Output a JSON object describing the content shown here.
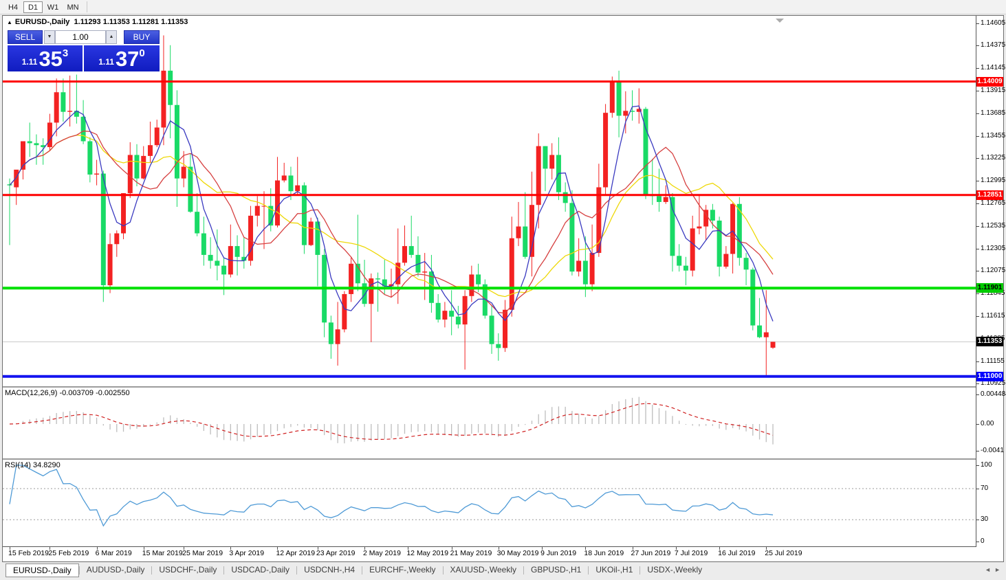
{
  "toolbar": {
    "timeframe_buttons": [
      {
        "label": "H4",
        "active": false
      },
      {
        "label": "D1",
        "active": true
      },
      {
        "label": "W1",
        "active": false
      },
      {
        "label": "MN",
        "active": false
      }
    ]
  },
  "chart_header": {
    "collapse_icon": "▲",
    "symbol": "EURUSD-,Daily",
    "ohlc": "1.11293 1.11353 1.11281 1.11353"
  },
  "trade_panel": {
    "sell_label": "SELL",
    "buy_label": "BUY",
    "volume": "1.00",
    "icons": {
      "spinner_down": "▼",
      "spinner_up": "▲"
    },
    "bid": {
      "prefix": "1.11",
      "big": "35",
      "sup": "3"
    },
    "ask": {
      "prefix": "1.11",
      "big": "37",
      "sup": "0"
    }
  },
  "price_axis": {
    "ticks": [
      "1.14605",
      "1.14375",
      "1.14145",
      "1.13915",
      "1.13685",
      "1.13455",
      "1.13225",
      "1.12995",
      "1.12765",
      "1.12535",
      "1.12305",
      "1.12075",
      "1.11845",
      "1.11615",
      "1.11385",
      "1.11155",
      "1.10925"
    ],
    "badges": [
      {
        "text": "1.14009",
        "bg": "#fe0000",
        "fg": "#ffffff"
      },
      {
        "text": "1.12851",
        "bg": "#fe0000",
        "fg": "#ffffff"
      },
      {
        "text": "1.11901",
        "bg": "#00cc00",
        "fg": "#000000"
      },
      {
        "text": "1.11353",
        "bg": "#000000",
        "fg": "#ffffff"
      },
      {
        "text": "1.11000",
        "bg": "#0000fe",
        "fg": "#ffffff"
      }
    ]
  },
  "macd_panel": {
    "label": "MACD(12,26,9) -0.003709 -0.002550",
    "axis_labels": [
      "0.004484",
      "0.00",
      "-0.0041"
    ],
    "params": {
      "fast": 12,
      "slow": 26,
      "signal": 9
    },
    "histogram_color": "#bdbdbd",
    "signal_color": "#d02020"
  },
  "rsi_panel": {
    "label": "RSI(14) 34.8290",
    "axis_labels": [
      "100",
      "70",
      "30",
      "0"
    ],
    "period": 14,
    "levels": [
      70,
      30
    ],
    "line_color": "#4e9ad6"
  },
  "date_axis": {
    "labels": [
      {
        "label": "15 Feb 2019",
        "i": 0
      },
      {
        "label": "25 Feb 2019",
        "i": 6
      },
      {
        "label": "6 Mar 2019",
        "i": 13
      },
      {
        "label": "15 Mar 2019",
        "i": 20
      },
      {
        "label": "25 Mar 2019",
        "i": 26
      },
      {
        "label": "3 Apr 2019",
        "i": 33
      },
      {
        "label": "12 Apr 2019",
        "i": 40
      },
      {
        "label": "23 Apr 2019",
        "i": 46
      },
      {
        "label": "2 May 2019",
        "i": 53
      },
      {
        "label": "12 May 2019",
        "i": 59.5
      },
      {
        "label": "21 May 2019",
        "i": 66
      },
      {
        "label": "30 May 2019",
        "i": 73
      },
      {
        "label": "9 Jun 2019",
        "i": 79.5
      },
      {
        "label": "18 Jun 2019",
        "i": 86
      },
      {
        "label": "27 Jun 2019",
        "i": 93
      },
      {
        "label": "7 Jul 2019",
        "i": 99.5
      },
      {
        "label": "16 Jul 2019",
        "i": 106
      },
      {
        "label": "25 Jul 2019",
        "i": 113
      }
    ]
  },
  "tabs": {
    "scroll_left_icon": "◄",
    "scroll_right_icon": "►",
    "items": [
      {
        "label": "EURUSD-,Daily",
        "active": true
      },
      {
        "label": "AUDUSD-,Daily",
        "active": false
      },
      {
        "label": "USDCHF-,Daily",
        "active": false
      },
      {
        "label": "USDCAD-,Daily",
        "active": false
      },
      {
        "label": "USDCNH-,H4",
        "active": false
      },
      {
        "label": "EURCHF-,Weekly",
        "active": false
      },
      {
        "label": "XAUUSD-,Weekly",
        "active": false
      },
      {
        "label": "GBPUSD-,H1",
        "active": false
      },
      {
        "label": "UKOil-,H1",
        "active": false
      },
      {
        "label": "USDX-,Weekly",
        "active": false
      }
    ]
  },
  "chart_data": {
    "type": "candlestick",
    "symbol": "EURUSD-",
    "timeframe": "Daily",
    "bull_color": "#f32222",
    "bear_color": "#19da66",
    "price_range": [
      1.109,
      1.1468
    ],
    "h_levels": [
      {
        "price": 1.14009,
        "color": "#fe0000",
        "width": 3
      },
      {
        "price": 1.12851,
        "color": "#fe0000",
        "width": 3
      },
      {
        "price": 1.11901,
        "color": "#00e002",
        "width": 4
      },
      {
        "price": 1.11,
        "color": "#1414f0",
        "width": 4
      },
      {
        "price": 1.11353,
        "color": "#c8c8c8",
        "width": 1,
        "role": "current-price"
      }
    ],
    "ma_lines": [
      {
        "color": "#eed808",
        "period": 18,
        "type": "sma"
      },
      {
        "color": "#d64040",
        "period": 11,
        "type": "sma"
      },
      {
        "color": "#3a3ac0",
        "period": 5,
        "type": "sma"
      }
    ],
    "candles": [
      [
        1.1296,
        1.1302,
        1.1234,
        1.1295
      ],
      [
        1.1293,
        1.131,
        1.1275,
        1.1311
      ],
      [
        1.1311,
        1.134,
        1.1301,
        1.134
      ],
      [
        1.134,
        1.1359,
        1.1324,
        1.1338
      ],
      [
        1.1338,
        1.1347,
        1.1316,
        1.1336
      ],
      [
        1.1336,
        1.1343,
        1.1316,
        1.1334
      ],
      [
        1.1334,
        1.1368,
        1.1331,
        1.1359
      ],
      [
        1.1359,
        1.1404,
        1.1345,
        1.139
      ],
      [
        1.139,
        1.1404,
        1.136,
        1.137
      ],
      [
        1.137,
        1.1407,
        1.1355,
        1.1371
      ],
      [
        1.1371,
        1.1408,
        1.1358,
        1.1365
      ],
      [
        1.1365,
        1.1382,
        1.1337,
        1.134
      ],
      [
        1.134,
        1.1344,
        1.1298,
        1.1306
      ],
      [
        1.1306,
        1.1321,
        1.1295,
        1.1307
      ],
      [
        1.1307,
        1.131,
        1.1176,
        1.1193
      ],
      [
        1.1193,
        1.1246,
        1.1185,
        1.1235
      ],
      [
        1.1235,
        1.1249,
        1.1222,
        1.1246
      ],
      [
        1.1246,
        1.1287,
        1.124,
        1.1287
      ],
      [
        1.1287,
        1.1339,
        1.1282,
        1.1326
      ],
      [
        1.1326,
        1.1337,
        1.1294,
        1.1302
      ],
      [
        1.1302,
        1.1335,
        1.1301,
        1.1325
      ],
      [
        1.1325,
        1.136,
        1.1318,
        1.1336
      ],
      [
        1.1336,
        1.1362,
        1.1334,
        1.1354
      ],
      [
        1.1354,
        1.1448,
        1.1336,
        1.1412
      ],
      [
        1.1412,
        1.1438,
        1.1343,
        1.1377
      ],
      [
        1.1377,
        1.1392,
        1.1273,
        1.1302
      ],
      [
        1.1302,
        1.133,
        1.1293,
        1.1314
      ],
      [
        1.1314,
        1.1327,
        1.1267,
        1.1268
      ],
      [
        1.1268,
        1.1287,
        1.1243,
        1.1246
      ],
      [
        1.1246,
        1.1263,
        1.1213,
        1.1224
      ],
      [
        1.1224,
        1.1242,
        1.121,
        1.1218
      ],
      [
        1.1218,
        1.125,
        1.1198,
        1.1213
      ],
      [
        1.1213,
        1.1221,
        1.1183,
        1.1204
      ],
      [
        1.1204,
        1.1255,
        1.1201,
        1.1233
      ],
      [
        1.1233,
        1.1244,
        1.1203,
        1.1222
      ],
      [
        1.1222,
        1.1242,
        1.121,
        1.1218
      ],
      [
        1.1218,
        1.1274,
        1.1213,
        1.1264
      ],
      [
        1.1264,
        1.1284,
        1.1253,
        1.1274
      ],
      [
        1.1274,
        1.1289,
        1.123,
        1.1274
      ],
      [
        1.1274,
        1.1292,
        1.1248,
        1.1254
      ],
      [
        1.1254,
        1.1324,
        1.1252,
        1.13
      ],
      [
        1.13,
        1.1318,
        1.1298,
        1.1305
      ],
      [
        1.1305,
        1.1314,
        1.128,
        1.1289
      ],
      [
        1.1289,
        1.1324,
        1.1286,
        1.1295
      ],
      [
        1.1295,
        1.1298,
        1.1225,
        1.1234
      ],
      [
        1.1234,
        1.1262,
        1.1233,
        1.1258
      ],
      [
        1.1258,
        1.1262,
        1.1192,
        1.1224
      ],
      [
        1.1224,
        1.123,
        1.114,
        1.1155
      ],
      [
        1.1155,
        1.1162,
        1.1118,
        1.1133
      ],
      [
        1.1133,
        1.1176,
        1.1111,
        1.1148
      ],
      [
        1.1148,
        1.1187,
        1.1145,
        1.1184
      ],
      [
        1.1184,
        1.1222,
        1.1176,
        1.1215
      ],
      [
        1.1215,
        1.1265,
        1.1187,
        1.1195
      ],
      [
        1.1195,
        1.1219,
        1.1171,
        1.1174
      ],
      [
        1.1174,
        1.1205,
        1.1135,
        1.12
      ],
      [
        1.12,
        1.1206,
        1.1166,
        1.1199
      ],
      [
        1.1199,
        1.1219,
        1.1184,
        1.1192
      ],
      [
        1.1192,
        1.121,
        1.1181,
        1.1194
      ],
      [
        1.1194,
        1.1251,
        1.1174,
        1.1216
      ],
      [
        1.1216,
        1.1254,
        1.1213,
        1.1233
      ],
      [
        1.1233,
        1.1264,
        1.1221,
        1.1224
      ],
      [
        1.1224,
        1.1243,
        1.1202,
        1.1206
      ],
      [
        1.1206,
        1.1226,
        1.1178,
        1.1207
      ],
      [
        1.1207,
        1.1224,
        1.1165,
        1.1175
      ],
      [
        1.1175,
        1.1184,
        1.1155,
        1.1158
      ],
      [
        1.1158,
        1.1176,
        1.115,
        1.1167
      ],
      [
        1.1167,
        1.1188,
        1.1142,
        1.1161
      ],
      [
        1.1161,
        1.1172,
        1.1149,
        1.1153
      ],
      [
        1.1153,
        1.1188,
        1.1107,
        1.1182
      ],
      [
        1.1182,
        1.1213,
        1.1176,
        1.1204
      ],
      [
        1.1204,
        1.1215,
        1.1186,
        1.1194
      ],
      [
        1.1194,
        1.1199,
        1.1159,
        1.1162
      ],
      [
        1.1162,
        1.1173,
        1.1123,
        1.1133
      ],
      [
        1.1133,
        1.1144,
        1.1116,
        1.1129
      ],
      [
        1.1129,
        1.1178,
        1.1125,
        1.1168
      ],
      [
        1.1168,
        1.1263,
        1.1161,
        1.1241
      ],
      [
        1.1241,
        1.1278,
        1.1233,
        1.1253
      ],
      [
        1.1253,
        1.1288,
        1.122,
        1.1222
      ],
      [
        1.1222,
        1.1309,
        1.1202,
        1.1275
      ],
      [
        1.1275,
        1.1348,
        1.1251,
        1.1335
      ],
      [
        1.1335,
        1.1335,
        1.1289,
        1.1312
      ],
      [
        1.1312,
        1.1338,
        1.1301,
        1.1326
      ],
      [
        1.1326,
        1.1344,
        1.128,
        1.1288
      ],
      [
        1.1288,
        1.1298,
        1.1268,
        1.1277
      ],
      [
        1.1277,
        1.129,
        1.1203,
        1.1207
      ],
      [
        1.1207,
        1.1241,
        1.1202,
        1.1218
      ],
      [
        1.1218,
        1.1243,
        1.1181,
        1.1194
      ],
      [
        1.1194,
        1.1255,
        1.1187,
        1.1226
      ],
      [
        1.1226,
        1.1317,
        1.1222,
        1.1293
      ],
      [
        1.1293,
        1.1378,
        1.1285,
        1.1369
      ],
      [
        1.1369,
        1.1406,
        1.1364,
        1.14
      ],
      [
        1.14,
        1.1412,
        1.1344,
        1.1366
      ],
      [
        1.1366,
        1.1391,
        1.1348,
        1.1371
      ],
      [
        1.1371,
        1.1392,
        1.1361,
        1.137
      ],
      [
        1.137,
        1.1394,
        1.1358,
        1.1373
      ],
      [
        1.1373,
        1.1375,
        1.1281,
        1.1285
      ],
      [
        1.1285,
        1.1322,
        1.1275,
        1.1284
      ],
      [
        1.1284,
        1.1312,
        1.1268,
        1.1278
      ],
      [
        1.1278,
        1.1295,
        1.1276,
        1.1283
      ],
      [
        1.1283,
        1.1287,
        1.1207,
        1.1223
      ],
      [
        1.1223,
        1.1235,
        1.1207,
        1.1213
      ],
      [
        1.1213,
        1.1222,
        1.1193,
        1.1208
      ],
      [
        1.1208,
        1.1264,
        1.1202,
        1.1251
      ],
      [
        1.1251,
        1.1286,
        1.1245,
        1.1253
      ],
      [
        1.1253,
        1.1275,
        1.1239,
        1.127
      ],
      [
        1.127,
        1.1276,
        1.1251,
        1.1259
      ],
      [
        1.1259,
        1.1263,
        1.1202,
        1.1212
      ],
      [
        1.1212,
        1.1233,
        1.121,
        1.1225
      ],
      [
        1.1225,
        1.1277,
        1.1205,
        1.1276
      ],
      [
        1.1276,
        1.1283,
        1.1213,
        1.1221
      ],
      [
        1.1221,
        1.1226,
        1.1193,
        1.1209
      ],
      [
        1.1209,
        1.1211,
        1.1147,
        1.1152
      ],
      [
        1.1152,
        1.118,
        1.1139,
        1.114
      ],
      [
        1.114,
        1.1188,
        1.1101,
        1.1145
      ],
      [
        1.11293,
        1.11353,
        1.11281,
        1.11353
      ]
    ]
  }
}
